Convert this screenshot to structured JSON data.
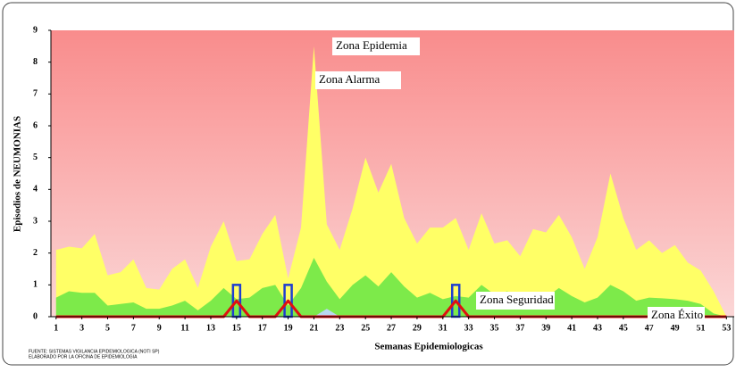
{
  "chart_data": {
    "type": "area",
    "y_label": "Episodios  de  NEUMONIAS",
    "x_label": "Semanas Epidemiologicas",
    "annotations": [
      "Zona Epidemia",
      "Zona Alarma",
      "Zona Seguridad",
      "Zona Éxito"
    ],
    "notes": [
      "FUENTE: SISTEMAS  VIGILANCIA  EPIDEMIOLOGICA  (NOTI SP)",
      "ELABORADO  POR LA OFICINA  DE EPIDEMIOLOGIA"
    ],
    "x": [
      1,
      2,
      3,
      4,
      5,
      6,
      7,
      8,
      9,
      10,
      11,
      12,
      13,
      14,
      15,
      16,
      17,
      18,
      19,
      20,
      21,
      22,
      23,
      24,
      25,
      26,
      27,
      28,
      29,
      30,
      31,
      32,
      33,
      34,
      35,
      36,
      37,
      38,
      39,
      40,
      41,
      42,
      43,
      44,
      45,
      46,
      47,
      48,
      49,
      50,
      51,
      52,
      53
    ],
    "xlim": [
      0.6,
      53.6
    ],
    "xticks": [
      1,
      3,
      5,
      7,
      9,
      11,
      13,
      15,
      17,
      19,
      21,
      23,
      25,
      27,
      29,
      31,
      33,
      35,
      37,
      39,
      41,
      43,
      45,
      47,
      49,
      51,
      53
    ],
    "ylim": [
      0,
      9
    ],
    "yticks": [
      0,
      1,
      2,
      3,
      4,
      5,
      6,
      7,
      8,
      9
    ],
    "epidemic_color": "#f98c8c",
    "series": [
      {
        "kind": "area",
        "color": "#ffff66",
        "values": [
          2.1,
          2.2,
          2.15,
          2.6,
          1.3,
          1.4,
          1.8,
          0.9,
          0.85,
          1.5,
          1.8,
          0.9,
          2.2,
          3.0,
          1.75,
          1.8,
          2.6,
          3.2,
          1.2,
          2.8,
          8.5,
          2.9,
          2.1,
          3.4,
          5.0,
          3.9,
          4.8,
          3.1,
          2.3,
          2.8,
          2.8,
          3.1,
          2.1,
          3.25,
          2.3,
          2.4,
          1.9,
          2.75,
          2.65,
          3.2,
          2.5,
          1.5,
          2.5,
          4.5,
          3.1,
          2.1,
          2.4,
          2.0,
          2.25,
          1.7,
          1.45,
          0.8,
          0
        ]
      },
      {
        "kind": "area",
        "color": "#7dea4a",
        "values": [
          0.6,
          0.8,
          0.75,
          0.75,
          0.35,
          0.4,
          0.45,
          0.25,
          0.25,
          0.35,
          0.5,
          0.2,
          0.5,
          0.9,
          0.55,
          0.6,
          0.9,
          1.0,
          0.35,
          0.9,
          1.85,
          1.1,
          0.55,
          1.0,
          1.3,
          0.95,
          1.4,
          0.95,
          0.6,
          0.75,
          0.55,
          0.65,
          0.6,
          1.0,
          0.7,
          0.8,
          0.55,
          0.7,
          0.6,
          0.9,
          0.65,
          0.45,
          0.6,
          1.0,
          0.8,
          0.5,
          0.6,
          0.58,
          0.55,
          0.5,
          0.4,
          0.1,
          0
        ]
      },
      {
        "kind": "area",
        "color": "#b8d8f0",
        "values": [
          0,
          0,
          0,
          0,
          0,
          0,
          0,
          0,
          0,
          0,
          0,
          0,
          0,
          0,
          0,
          0,
          0,
          0,
          0,
          0,
          0,
          0.25,
          0,
          0,
          0,
          0,
          0,
          0,
          0,
          0,
          0,
          0,
          0,
          0,
          0,
          0,
          0,
          0,
          0,
          0,
          0,
          0,
          0,
          0,
          0,
          0,
          0,
          0,
          0,
          0,
          0,
          0,
          0
        ]
      },
      {
        "kind": "bar",
        "color": "#1f3fd0",
        "values": [
          0,
          0,
          0,
          0,
          0,
          0,
          0,
          0,
          0,
          0,
          0,
          0,
          0,
          0,
          1,
          0,
          0,
          0,
          1,
          0,
          0,
          0,
          0,
          0,
          0,
          0,
          0,
          0,
          0,
          0,
          0,
          1,
          0,
          0,
          0,
          0,
          0,
          0,
          0,
          0,
          0,
          0,
          0,
          0,
          0,
          0,
          0,
          0,
          0,
          0,
          0,
          0,
          0
        ]
      },
      {
        "kind": "line",
        "color": "#e01010",
        "values": [
          0,
          0,
          0,
          0,
          0,
          0,
          0,
          0,
          0,
          0,
          0,
          0,
          0,
          0,
          0.5,
          0,
          0,
          0,
          0.5,
          0,
          0,
          0,
          0,
          0,
          0,
          0,
          0,
          0,
          0,
          0,
          0,
          0.5,
          0,
          0,
          0,
          0,
          0,
          0,
          0,
          0,
          0,
          0,
          0,
          0,
          0,
          0,
          0,
          0,
          0,
          0,
          0,
          0,
          0
        ]
      }
    ]
  }
}
